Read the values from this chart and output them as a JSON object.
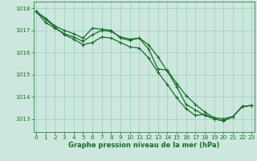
{
  "background_color": "#cce8de",
  "grid_color": "#99ccbb",
  "line_color": "#1a6b2a",
  "tick_color": "#1a6b2a",
  "xlabel": "Graphe pression niveau de la mer (hPa)",
  "xlabel_color": "#1a6b2a",
  "ylim": [
    1012.4,
    1018.3
  ],
  "xlim": [
    -0.3,
    23.3
  ],
  "yticks": [
    1013,
    1014,
    1015,
    1016,
    1017,
    1018
  ],
  "xticks": [
    0,
    1,
    2,
    3,
    4,
    5,
    6,
    7,
    8,
    9,
    10,
    11,
    12,
    13,
    14,
    15,
    16,
    17,
    18,
    19,
    20,
    21,
    22,
    23
  ],
  "series1": [
    1017.85,
    1017.55,
    1017.2,
    1017.0,
    1016.85,
    1016.65,
    1017.1,
    1017.05,
    1017.0,
    1016.65,
    1016.55,
    1016.65,
    1016.15,
    1015.25,
    1015.2,
    1014.6,
    1014.05,
    1013.65,
    1013.3,
    1013.05,
    1013.0,
    1013.1,
    1013.55,
    1013.6
  ],
  "series2": [
    1017.85,
    1017.5,
    1017.15,
    1016.8,
    1016.6,
    1016.35,
    1016.45,
    1016.7,
    1016.65,
    1016.45,
    1016.25,
    1016.2,
    1015.75,
    1015.1,
    1014.55,
    1013.95,
    1013.45,
    1013.15,
    1013.2,
    1013.0,
    1012.9,
    1013.1,
    1013.55,
    1013.6
  ],
  "series3": [
    1017.85,
    1017.35,
    1017.1,
    1016.85,
    1016.7,
    1016.5,
    1016.8,
    1017.0,
    1016.95,
    1016.7,
    1016.6,
    1016.65,
    1016.35,
    1015.8,
    1015.15,
    1014.45,
    1013.65,
    1013.4,
    1013.15,
    1013.0,
    1012.9,
    1013.1,
    1013.55,
    1013.6
  ],
  "tick_fontsize": 5.2,
  "xlabel_fontsize": 6.0,
  "linewidth": 0.9,
  "markersize": 2.5
}
